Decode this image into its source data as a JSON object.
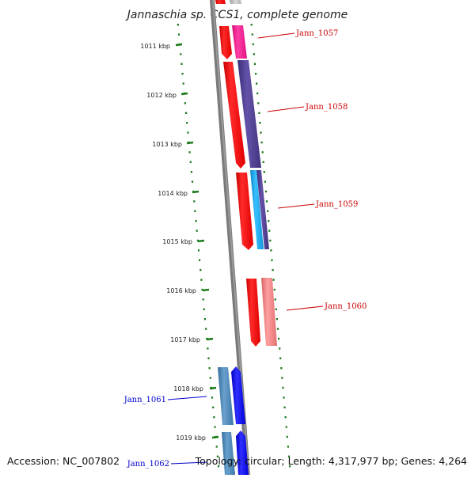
{
  "title": "Jannaschia sp. CCS1, complete genome",
  "ticks": [
    {
      "label": "1011 kbp"
    },
    {
      "label": "1012 kbp"
    },
    {
      "label": "1013 kbp"
    },
    {
      "label": "1014 kbp"
    },
    {
      "label": "1015 kbp"
    },
    {
      "label": "1016 kbp"
    },
    {
      "label": "1017 kbp"
    },
    {
      "label": "1018 kbp"
    },
    {
      "label": "1019 kbp"
    }
  ],
  "genes": [
    {
      "label": "Jann_1057",
      "color": "#cc0000"
    },
    {
      "label": "Jann_1058",
      "color": "#cc0000"
    },
    {
      "label": "Jann_1059",
      "color": "#cc0000"
    },
    {
      "label": "Jann_1060",
      "color": "#cc0000"
    },
    {
      "label": "Jann_1061",
      "color": "#0000cc"
    },
    {
      "label": "Jann_1062",
      "color": "#0000cc"
    }
  ],
  "feature_colors": {
    "red": "#ff0000",
    "magenta": "#ff1493",
    "purple": "#4b3d8f",
    "cyan": "#1aa8f0",
    "pink": "#f08080",
    "blue": "#0000ff",
    "steelblue": "#4682b4",
    "tick_green": "#1a7a1a",
    "backbone": "#808080"
  },
  "footer": {
    "accession": "Accession: NC_007802",
    "topology": "Topology: circular; Length: 4,317,977 bp; Genes: 4,264"
  }
}
